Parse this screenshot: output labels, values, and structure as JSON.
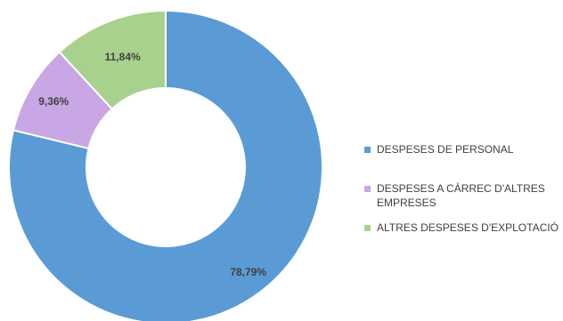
{
  "chart_data": {
    "type": "pie",
    "donut": true,
    "title": "",
    "categories": [
      "DESPESES DE PERSONAL",
      "DESPESES A CÀRREC D'ALTRES EMPRESES",
      "ALTRES DESPESES D'EXPLOTACIÓ"
    ],
    "values": [
      78.79,
      9.36,
      11.84
    ],
    "data_labels": [
      "78,79%",
      "9,36%",
      "11,84%"
    ],
    "colors": [
      "#5b9bd5",
      "#c9a6e4",
      "#a9d18e"
    ],
    "legend_position": "right"
  }
}
